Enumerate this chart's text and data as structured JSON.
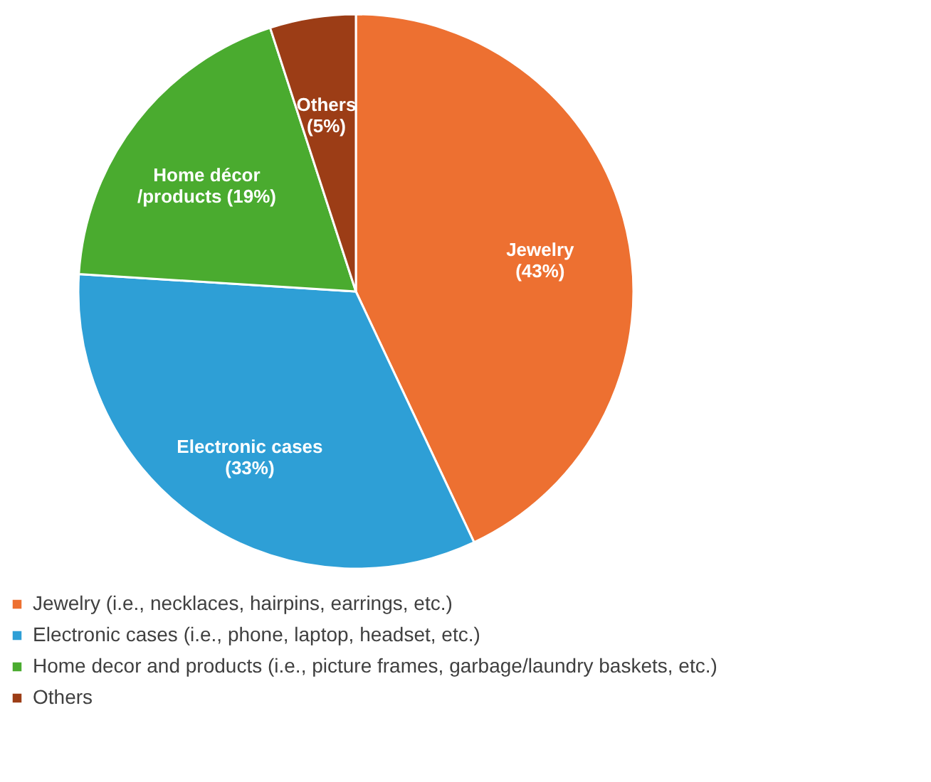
{
  "chart_data": {
    "type": "pie",
    "categories": [
      "Jewelry (i.e., necklaces, hairpins, earrings, etc.)",
      "Electronic cases (i.e., phone, laptop, headset, etc.)",
      "Home decor and products (i.e., picture frames, garbage/laundry baskets, etc.)",
      "Others"
    ],
    "values": [
      43,
      33,
      19,
      5
    ],
    "colors": [
      "#ed7031",
      "#2e9fd6",
      "#4aab2f",
      "#9c3d16"
    ],
    "value_labels": [
      "Jewelry\n(43%)",
      "Electronic cases\n(33%)",
      "Home décor\n/products (19%)",
      "Others\n(5%)"
    ],
    "legend": "bottom"
  }
}
